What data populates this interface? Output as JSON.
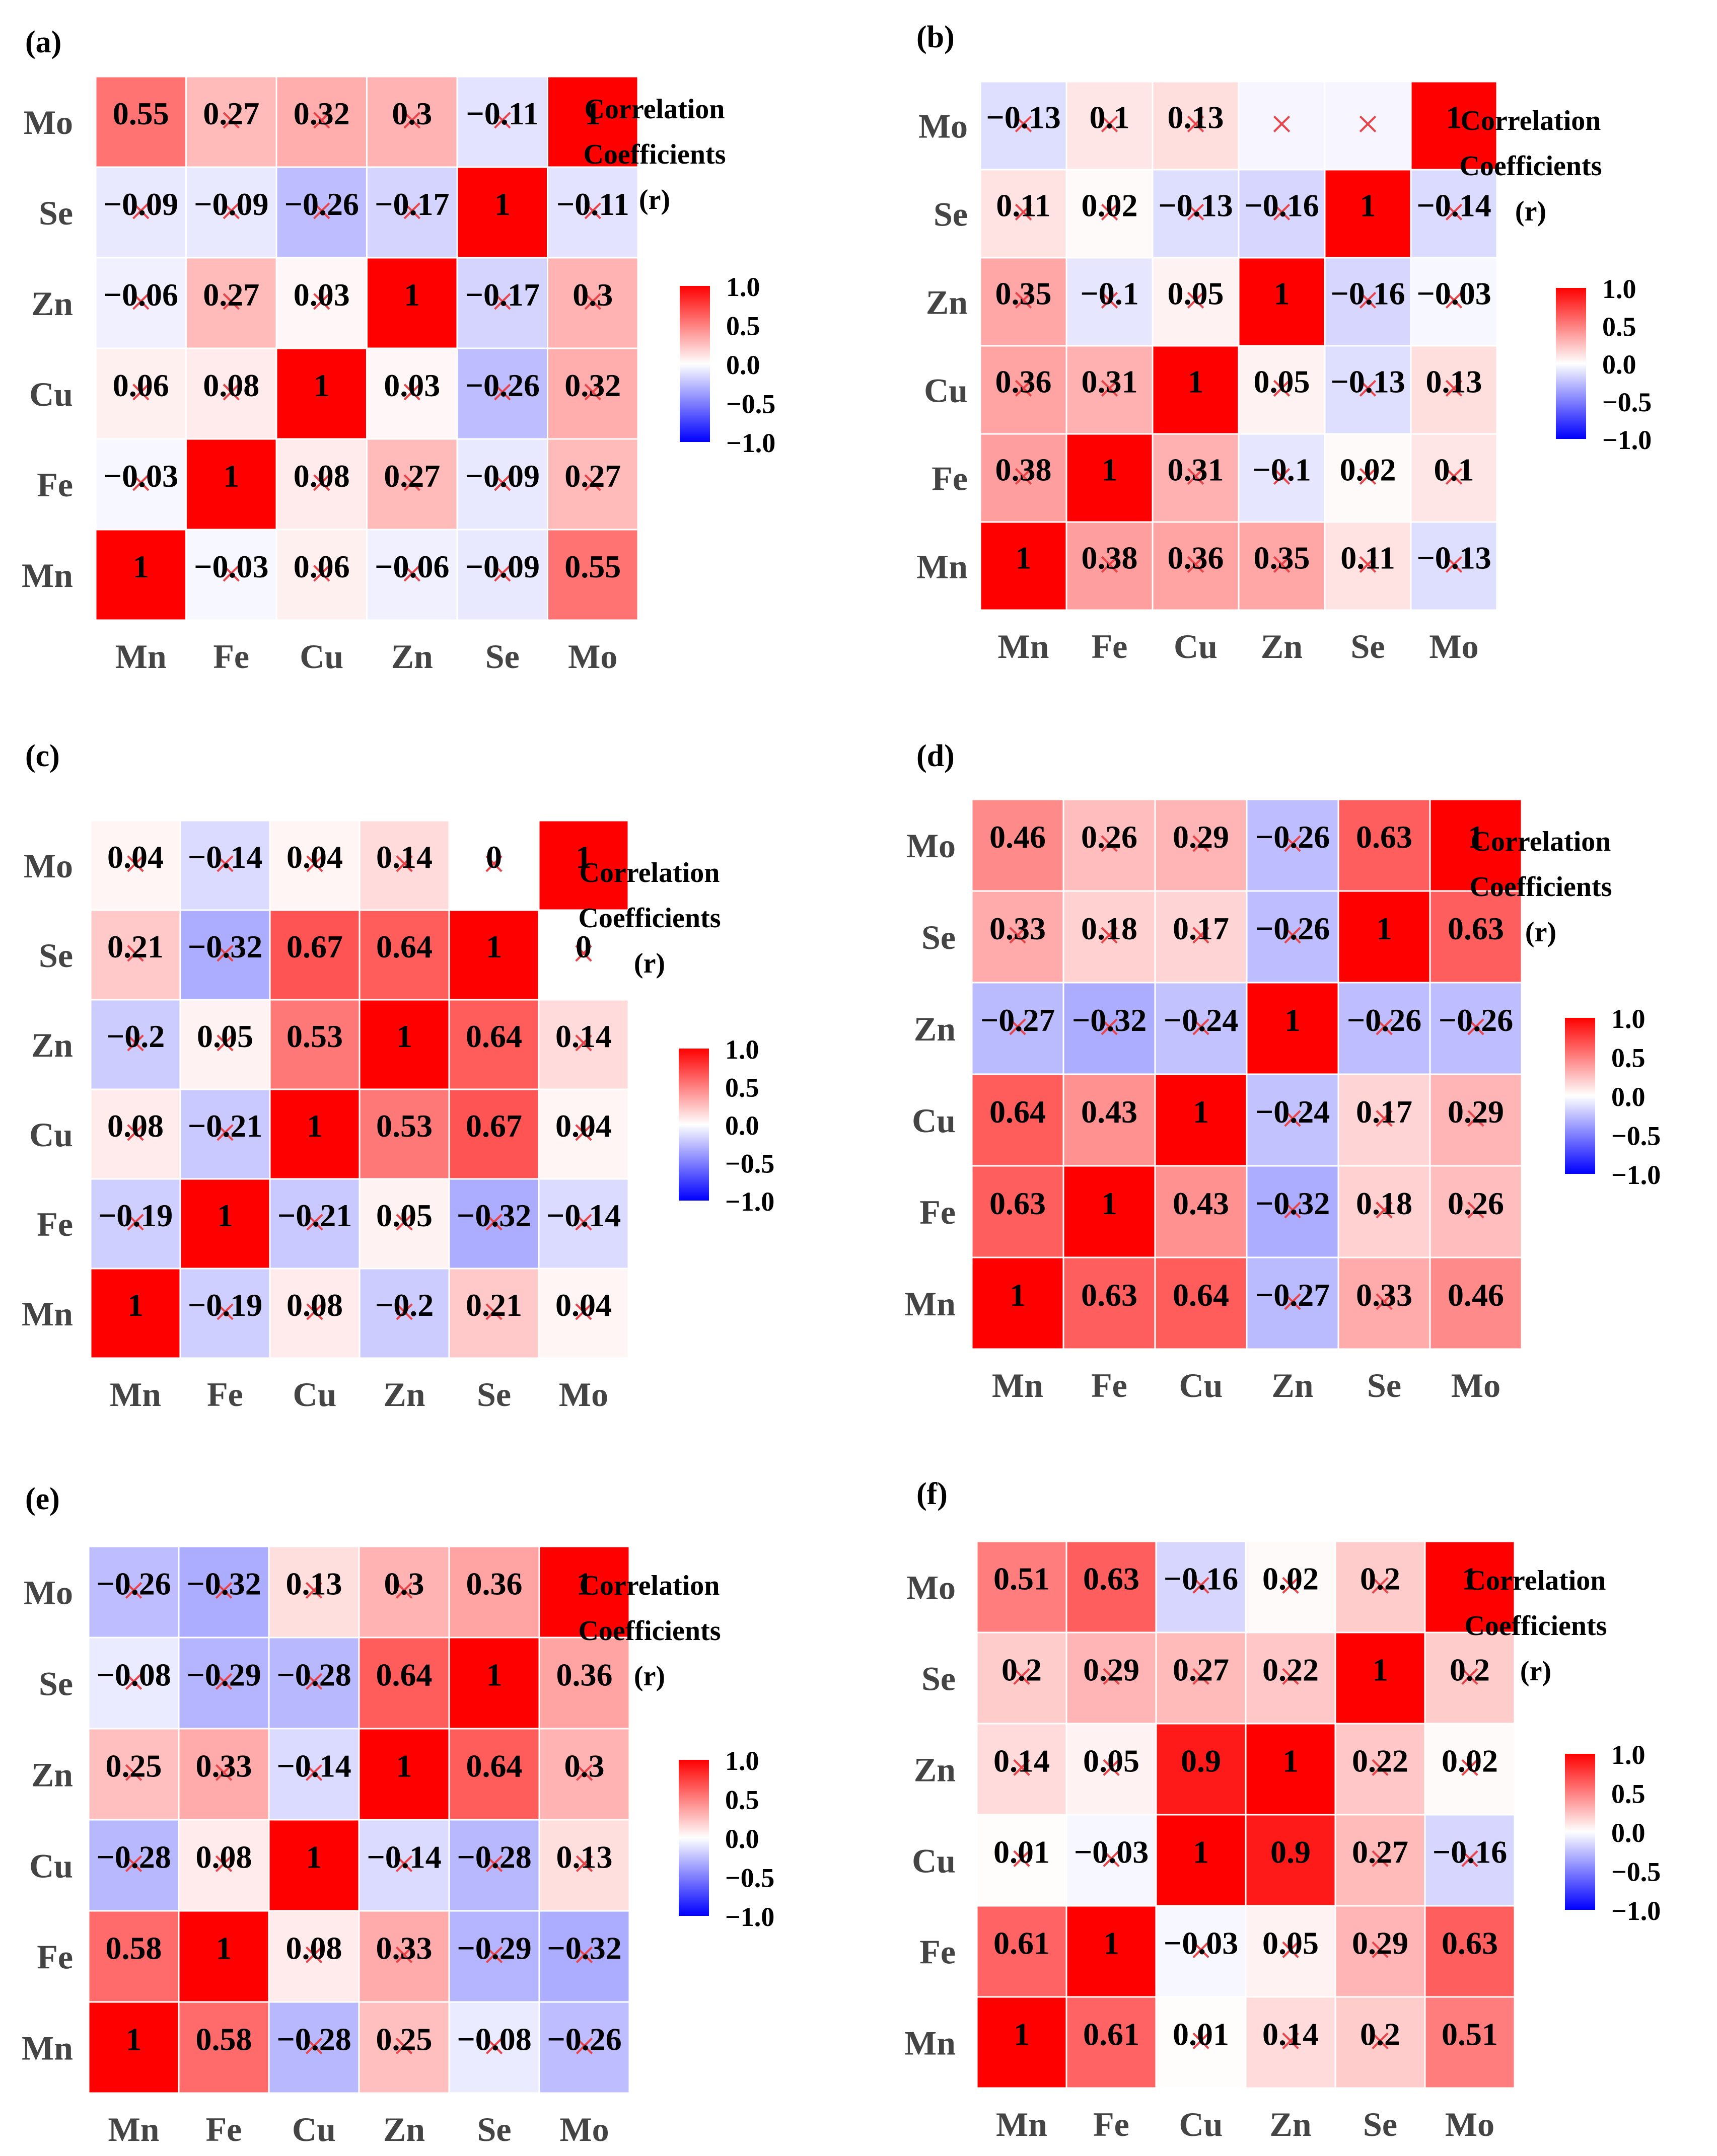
{
  "figure": {
    "legend_title_lines": [
      "Correlation",
      "Coefficients",
      "(r)"
    ],
    "colorbar_ticks": [
      "1.0",
      "0.5",
      "0.0",
      "-0.5",
      "-1.0"
    ],
    "colorbar_tick_values": [
      1.0,
      0.5,
      0.0,
      -0.5,
      -1.0
    ],
    "colors": {
      "positive": "#ff0000",
      "neutral": "#ffffff",
      "negative": "#0000ff",
      "cross": "#e8454a",
      "text": "#000000"
    },
    "nonsignificant_marker": "×",
    "elements": [
      "Mn",
      "Fe",
      "Cu",
      "Zn",
      "Se",
      "Mo"
    ]
  },
  "chart_data": [
    {
      "type": "heatmap",
      "panel": "(a)",
      "x_categories": [
        "Mn",
        "Fe",
        "Cu",
        "Zn",
        "Se",
        "Mo"
      ],
      "y_categories": [
        "Mo",
        "Se",
        "Zn",
        "Cu",
        "Fe",
        "Mn"
      ],
      "values": [
        [
          0.55,
          0.27,
          0.32,
          0.3,
          -0.11,
          1
        ],
        [
          -0.09,
          -0.09,
          -0.26,
          -0.17,
          1,
          -0.11
        ],
        [
          -0.06,
          0.27,
          0.03,
          1,
          -0.17,
          0.3
        ],
        [
          0.06,
          0.08,
          1,
          0.03,
          -0.26,
          0.32
        ],
        [
          -0.03,
          1,
          0.08,
          0.27,
          -0.09,
          0.27
        ],
        [
          1,
          -0.03,
          0.06,
          -0.06,
          -0.09,
          0.55
        ]
      ],
      "labels": [
        [
          "0.55",
          "0.27",
          "0.32",
          "0.3",
          "-0.11",
          "1"
        ],
        [
          "-0.09",
          "-0.09",
          "-0.26",
          "-0.17",
          "1",
          "-0.11"
        ],
        [
          "-0.06",
          "0.27",
          "0.03",
          "1",
          "-0.17",
          "0.3"
        ],
        [
          "0.06",
          "0.08",
          "1",
          "0.03",
          "-0.26",
          "0.32"
        ],
        [
          "-0.03",
          "1",
          "0.08",
          "0.27",
          "-0.09",
          "0.27"
        ],
        [
          "1",
          "-0.03",
          "0.06",
          "-0.06",
          "-0.09",
          "0.55"
        ]
      ],
      "crossed": [
        [
          0,
          1,
          1,
          1,
          1,
          0
        ],
        [
          1,
          1,
          1,
          1,
          0,
          1
        ],
        [
          1,
          1,
          1,
          0,
          1,
          1
        ],
        [
          1,
          1,
          0,
          1,
          1,
          1
        ],
        [
          1,
          0,
          1,
          1,
          1,
          1
        ],
        [
          0,
          1,
          1,
          1,
          1,
          0
        ]
      ]
    },
    {
      "type": "heatmap",
      "panel": "(b)",
      "x_categories": [
        "Mn",
        "Fe",
        "Cu",
        "Zn",
        "Se",
        "Mo"
      ],
      "y_categories": [
        "Mo",
        "Se",
        "Zn",
        "Cu",
        "Fe",
        "Mn"
      ],
      "values": [
        [
          -0.13,
          0.1,
          0.13,
          0,
          0,
          1
        ],
        [
          0.11,
          0.02,
          -0.13,
          -0.16,
          1,
          -0.14
        ],
        [
          0.35,
          -0.1,
          0.05,
          1,
          -0.16,
          -0.03
        ],
        [
          0.36,
          0.31,
          1,
          0.05,
          -0.13,
          0.13
        ],
        [
          0.38,
          1,
          0.31,
          -0.1,
          0.02,
          0.1
        ],
        [
          1,
          0.38,
          0.36,
          0.35,
          0.11,
          -0.13
        ]
      ],
      "labels": [
        [
          "-0.13",
          "0.1",
          "0.13",
          "",
          "",
          "1"
        ],
        [
          "0.11",
          "0.02",
          "-0.13",
          "-0.16",
          "1",
          "-0.14"
        ],
        [
          "0.35",
          "-0.1",
          "0.05",
          "1",
          "-0.16",
          "-0.03"
        ],
        [
          "0.36",
          "0.31",
          "1",
          "0.05",
          "-0.13",
          "0.13"
        ],
        [
          "0.38",
          "1",
          "0.31",
          "-0.1",
          "0.02",
          "0.1"
        ],
        [
          "1",
          "0.38",
          "0.36",
          "0.35",
          "0.11",
          "-0.13"
        ]
      ],
      "crossed": [
        [
          1,
          1,
          1,
          1,
          1,
          0
        ],
        [
          1,
          1,
          1,
          1,
          0,
          1
        ],
        [
          1,
          1,
          1,
          0,
          1,
          1
        ],
        [
          1,
          1,
          0,
          1,
          1,
          1
        ],
        [
          1,
          0,
          1,
          1,
          1,
          1
        ],
        [
          0,
          1,
          1,
          1,
          1,
          1
        ]
      ]
    },
    {
      "type": "heatmap",
      "panel": "(c)",
      "x_categories": [
        "Mn",
        "Fe",
        "Cu",
        "Zn",
        "Se",
        "Mo"
      ],
      "y_categories": [
        "Mo",
        "Se",
        "Zn",
        "Cu",
        "Fe",
        "Mn"
      ],
      "values": [
        [
          0.04,
          -0.14,
          0.04,
          0.14,
          0,
          1
        ],
        [
          0.21,
          -0.32,
          0.67,
          0.64,
          1,
          0
        ],
        [
          -0.2,
          0.05,
          0.53,
          1,
          0.64,
          0.14
        ],
        [
          0.08,
          -0.21,
          1,
          0.53,
          0.67,
          0.04
        ],
        [
          -0.19,
          1,
          -0.21,
          0.05,
          -0.32,
          -0.14
        ],
        [
          1,
          -0.19,
          0.08,
          -0.2,
          0.21,
          0.04
        ]
      ],
      "labels": [
        [
          "0.04",
          "-0.14",
          "0.04",
          "0.14",
          "0",
          "1"
        ],
        [
          "0.21",
          "-0.32",
          "0.67",
          "0.64",
          "1",
          "0"
        ],
        [
          "-0.2",
          "0.05",
          "0.53",
          "1",
          "0.64",
          "0.14"
        ],
        [
          "0.08",
          "-0.21",
          "1",
          "0.53",
          "0.67",
          "0.04"
        ],
        [
          "-0.19",
          "1",
          "-0.21",
          "0.05",
          "-0.32",
          "-0.14"
        ],
        [
          "1",
          "-0.19",
          "0.08",
          "-0.2",
          "0.21",
          "0.04"
        ]
      ],
      "crossed": [
        [
          1,
          1,
          1,
          1,
          1,
          0
        ],
        [
          1,
          1,
          0,
          0,
          0,
          1
        ],
        [
          1,
          1,
          0,
          0,
          0,
          1
        ],
        [
          1,
          1,
          0,
          0,
          0,
          1
        ],
        [
          1,
          0,
          1,
          1,
          1,
          1
        ],
        [
          0,
          1,
          1,
          1,
          1,
          1
        ]
      ]
    },
    {
      "type": "heatmap",
      "panel": "(d)",
      "x_categories": [
        "Mn",
        "Fe",
        "Cu",
        "Zn",
        "Se",
        "Mo"
      ],
      "y_categories": [
        "Mo",
        "Se",
        "Zn",
        "Cu",
        "Fe",
        "Mn"
      ],
      "values": [
        [
          0.46,
          0.26,
          0.29,
          -0.26,
          0.63,
          1
        ],
        [
          0.33,
          0.18,
          0.17,
          -0.26,
          1,
          0.63
        ],
        [
          -0.27,
          -0.32,
          -0.24,
          1,
          -0.26,
          -0.26
        ],
        [
          0.64,
          0.43,
          1,
          -0.24,
          0.17,
          0.29
        ],
        [
          0.63,
          1,
          0.43,
          -0.32,
          0.18,
          0.26
        ],
        [
          1,
          0.63,
          0.64,
          -0.27,
          0.33,
          0.46
        ]
      ],
      "labels": [
        [
          "0.46",
          "0.26",
          "0.29",
          "-0.26",
          "0.63",
          "1"
        ],
        [
          "0.33",
          "0.18",
          "0.17",
          "-0.26",
          "1",
          "0.63"
        ],
        [
          "-0.27",
          "-0.32",
          "-0.24",
          "1",
          "-0.26",
          "-0.26"
        ],
        [
          "0.64",
          "0.43",
          "1",
          "-0.24",
          "0.17",
          "0.29"
        ],
        [
          "0.63",
          "1",
          "0.43",
          "-0.32",
          "0.18",
          "0.26"
        ],
        [
          "1",
          "0.63",
          "0.64",
          "-0.27",
          "0.33",
          "0.46"
        ]
      ],
      "crossed": [
        [
          0,
          1,
          1,
          1,
          0,
          0
        ],
        [
          1,
          1,
          1,
          1,
          0,
          0
        ],
        [
          1,
          1,
          1,
          0,
          1,
          1
        ],
        [
          0,
          0,
          0,
          1,
          1,
          1
        ],
        [
          0,
          0,
          0,
          1,
          1,
          1
        ],
        [
          0,
          0,
          0,
          1,
          1,
          0
        ]
      ]
    },
    {
      "type": "heatmap",
      "panel": "(e)",
      "x_categories": [
        "Mn",
        "Fe",
        "Cu",
        "Zn",
        "Se",
        "Mo"
      ],
      "y_categories": [
        "Mo",
        "Se",
        "Zn",
        "Cu",
        "Fe",
        "Mn"
      ],
      "values": [
        [
          -0.26,
          -0.32,
          0.13,
          0.3,
          0.36,
          1
        ],
        [
          -0.08,
          -0.29,
          -0.28,
          0.64,
          1,
          0.36
        ],
        [
          0.25,
          0.33,
          -0.14,
          1,
          0.64,
          0.3
        ],
        [
          -0.28,
          0.08,
          1,
          -0.14,
          -0.28,
          0.13
        ],
        [
          0.58,
          1,
          0.08,
          0.33,
          -0.29,
          -0.32
        ],
        [
          1,
          0.58,
          -0.28,
          0.25,
          -0.08,
          -0.26
        ]
      ],
      "labels": [
        [
          "-0.26",
          "-0.32",
          "0.13",
          "0.3",
          "0.36",
          "1"
        ],
        [
          "-0.08",
          "-0.29",
          "-0.28",
          "0.64",
          "1",
          "0.36"
        ],
        [
          "0.25",
          "0.33",
          "-0.14",
          "1",
          "0.64",
          "0.3"
        ],
        [
          "-0.28",
          "0.08",
          "1",
          "-0.14",
          "-0.28",
          "0.13"
        ],
        [
          "0.58",
          "1",
          "0.08",
          "0.33",
          "-0.29",
          "-0.32"
        ],
        [
          "1",
          "0.58",
          "-0.28",
          "0.25",
          "-0.08",
          "-0.26"
        ]
      ],
      "crossed": [
        [
          1,
          1,
          1,
          1,
          0,
          0
        ],
        [
          1,
          1,
          1,
          0,
          0,
          0
        ],
        [
          1,
          1,
          1,
          0,
          0,
          1
        ],
        [
          1,
          1,
          0,
          1,
          1,
          1
        ],
        [
          0,
          0,
          1,
          1,
          1,
          1
        ],
        [
          0,
          0,
          1,
          1,
          1,
          1
        ]
      ]
    },
    {
      "type": "heatmap",
      "panel": "(f)",
      "x_categories": [
        "Mn",
        "Fe",
        "Cu",
        "Zn",
        "Se",
        "Mo"
      ],
      "y_categories": [
        "Mo",
        "Se",
        "Zn",
        "Cu",
        "Fe",
        "Mn"
      ],
      "values": [
        [
          0.51,
          0.63,
          -0.16,
          0.02,
          0.2,
          1
        ],
        [
          0.2,
          0.29,
          0.27,
          0.22,
          1,
          0.2
        ],
        [
          0.14,
          0.05,
          0.9,
          1,
          0.22,
          0.02
        ],
        [
          0.01,
          -0.03,
          1,
          0.9,
          0.27,
          -0.16
        ],
        [
          0.61,
          1,
          -0.03,
          0.05,
          0.29,
          0.63
        ],
        [
          1,
          0.61,
          0.01,
          0.14,
          0.2,
          0.51
        ]
      ],
      "labels": [
        [
          "0.51",
          "0.63",
          "-0.16",
          "0.02",
          "0.2",
          "1"
        ],
        [
          "0.2",
          "0.29",
          "0.27",
          "0.22",
          "1",
          "0.2"
        ],
        [
          "0.14",
          "0.05",
          "0.9",
          "1",
          "0.22",
          "0.02"
        ],
        [
          "0.01",
          "-0.03",
          "1",
          "0.9",
          "0.27",
          "-0.16"
        ],
        [
          "0.61",
          "1",
          "-0.03",
          "0.05",
          "0.29",
          "0.63"
        ],
        [
          "1",
          "0.61",
          "0.01",
          "0.14",
          "0.2",
          "0.51"
        ]
      ],
      "crossed": [
        [
          0,
          0,
          1,
          1,
          1,
          0
        ],
        [
          1,
          1,
          1,
          1,
          0,
          1
        ],
        [
          1,
          1,
          0,
          0,
          1,
          1
        ],
        [
          1,
          1,
          0,
          0,
          1,
          1
        ],
        [
          0,
          0,
          1,
          1,
          1,
          0
        ],
        [
          0,
          0,
          1,
          1,
          1,
          0
        ]
      ]
    }
  ]
}
